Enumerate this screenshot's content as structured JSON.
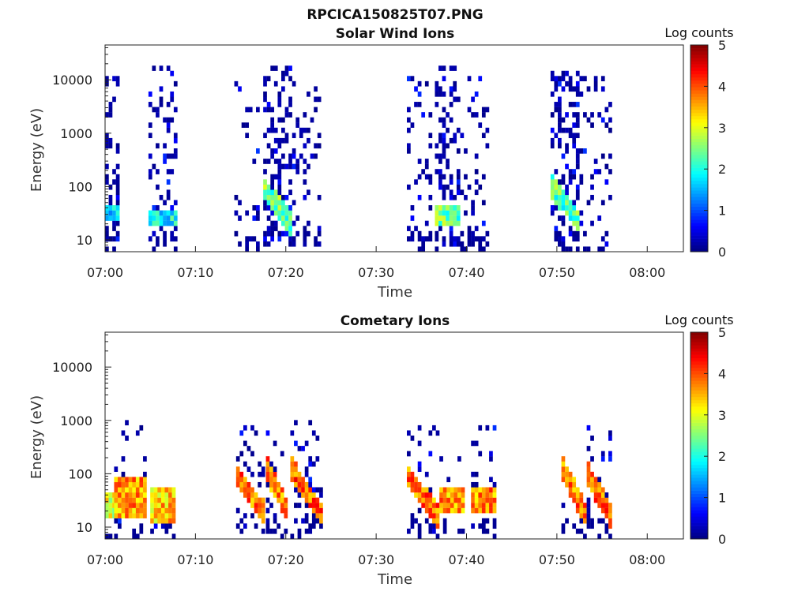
{
  "figure": {
    "title": "RPCICA150825T07.PNG"
  },
  "chart_data": [
    {
      "type": "heatmap",
      "title": "Solar Wind Ions",
      "xlabel": "Time",
      "ylabel": "Energy (eV)",
      "yscale": "log",
      "ylim": [
        6,
        45000
      ],
      "xlim_minutes": [
        0,
        64
      ],
      "x_ticks": [
        "07:00",
        "07:10",
        "07:20",
        "07:30",
        "07:40",
        "07:50",
        "08:00"
      ],
      "y_ticks": [
        "10",
        "100",
        "1000",
        "10000"
      ],
      "colorbar": {
        "label": "Log counts",
        "min": 0,
        "max": 5,
        "ticks": [
          "0",
          "1",
          "2",
          "3",
          "4",
          "5"
        ],
        "colormap": "jet"
      },
      "seed": 11,
      "bursts": [
        {
          "t0": 0.0,
          "t1": 1.3,
          "sparse": 0.55,
          "emax": 12000,
          "core_e": [
            22,
            40
          ],
          "core_log": 1.6,
          "drift": false
        },
        {
          "t0": 4.8,
          "t1": 7.8,
          "sparse": 0.65,
          "emax": 20000,
          "core_e": [
            20,
            38
          ],
          "core_log": 1.9,
          "drift": false
        },
        {
          "t0": 14.3,
          "t1": 16.8,
          "sparse": 0.35,
          "emax": 9000,
          "core_e": null,
          "core_log": 0,
          "drift": false
        },
        {
          "t0": 17.5,
          "t1": 20.7,
          "sparse": 0.8,
          "emax": 20000,
          "core_e": [
            18,
            90
          ],
          "core_log": 2.4,
          "drift": true
        },
        {
          "t0": 20.7,
          "t1": 23.6,
          "sparse": 0.4,
          "emax": 12000,
          "core_e": null,
          "core_log": 0,
          "drift": false
        },
        {
          "t0": 33.4,
          "t1": 36.0,
          "sparse": 0.4,
          "emax": 12000,
          "core_e": null,
          "core_log": 0,
          "drift": false
        },
        {
          "t0": 36.5,
          "t1": 39.3,
          "sparse": 0.85,
          "emax": 20000,
          "core_e": [
            20,
            40
          ],
          "core_log": 2.4,
          "drift": false
        },
        {
          "t0": 39.3,
          "t1": 42.5,
          "sparse": 0.35,
          "emax": 12000,
          "core_e": null,
          "core_log": 0,
          "drift": false
        },
        {
          "t0": 49.3,
          "t1": 52.5,
          "sparse": 0.8,
          "emax": 15000,
          "core_e": [
            20,
            110
          ],
          "core_log": 2.3,
          "drift": true
        },
        {
          "t0": 52.5,
          "t1": 55.8,
          "sparse": 0.35,
          "emax": 12000,
          "core_e": null,
          "core_log": 0,
          "drift": false
        }
      ]
    },
    {
      "type": "heatmap",
      "title": "Cometary Ions",
      "xlabel": "Time",
      "ylabel": "Energy (eV)",
      "yscale": "log",
      "ylim": [
        6,
        45000
      ],
      "xlim_minutes": [
        0,
        64
      ],
      "x_ticks": [
        "07:00",
        "07:10",
        "07:20",
        "07:30",
        "07:40",
        "07:50",
        "08:00"
      ],
      "y_ticks": [
        "10",
        "100",
        "1000",
        "10000"
      ],
      "colorbar": {
        "label": "Log counts",
        "min": 0,
        "max": 5,
        "ticks": [
          "0",
          "1",
          "2",
          "3",
          "4",
          "5"
        ],
        "colormap": "jet"
      },
      "seed": 29,
      "bursts": [
        {
          "t0": 0.0,
          "t1": 1.0,
          "sparse": 0.0,
          "emax": 80,
          "core_e": [
            15,
            45
          ],
          "core_log": 3.0,
          "drift": false
        },
        {
          "t0": 1.0,
          "t1": 4.5,
          "sparse": 0.3,
          "emax": 1000,
          "core_e": [
            15,
            80
          ],
          "core_log": 3.6,
          "drift": false
        },
        {
          "t0": 5.0,
          "t1": 7.8,
          "sparse": 0.2,
          "emax": 120,
          "core_e": [
            12,
            50
          ],
          "core_log": 3.4,
          "drift": false
        },
        {
          "t0": 14.5,
          "t1": 17.5,
          "sparse": 0.35,
          "emax": 900,
          "core_e": [
            18,
            90
          ],
          "core_log": 3.8,
          "drift": true
        },
        {
          "t0": 17.8,
          "t1": 20.2,
          "sparse": 0.35,
          "emax": 800,
          "core_e": [
            18,
            120
          ],
          "core_log": 3.8,
          "drift": true
        },
        {
          "t0": 20.5,
          "t1": 23.8,
          "sparse": 0.4,
          "emax": 1100,
          "core_e": [
            18,
            120
          ],
          "core_log": 3.9,
          "drift": true
        },
        {
          "t0": 33.4,
          "t1": 36.8,
          "sparse": 0.3,
          "emax": 900,
          "core_e": [
            15,
            90
          ],
          "core_log": 3.8,
          "drift": true
        },
        {
          "t0": 37.0,
          "t1": 39.8,
          "sparse": 0.15,
          "emax": 200,
          "core_e": [
            18,
            60
          ],
          "core_log": 3.6,
          "drift": false
        },
        {
          "t0": 40.5,
          "t1": 43.0,
          "sparse": 0.35,
          "emax": 1100,
          "core_e": [
            18,
            50
          ],
          "core_log": 3.7,
          "drift": false
        },
        {
          "t0": 50.5,
          "t1": 53.0,
          "sparse": 0.1,
          "emax": 150,
          "core_e": [
            18,
            130
          ],
          "core_log": 3.8,
          "drift": true
        },
        {
          "t0": 53.3,
          "t1": 56.0,
          "sparse": 0.35,
          "emax": 1400,
          "core_e": [
            15,
            100
          ],
          "core_log": 3.8,
          "drift": true
        }
      ]
    }
  ]
}
